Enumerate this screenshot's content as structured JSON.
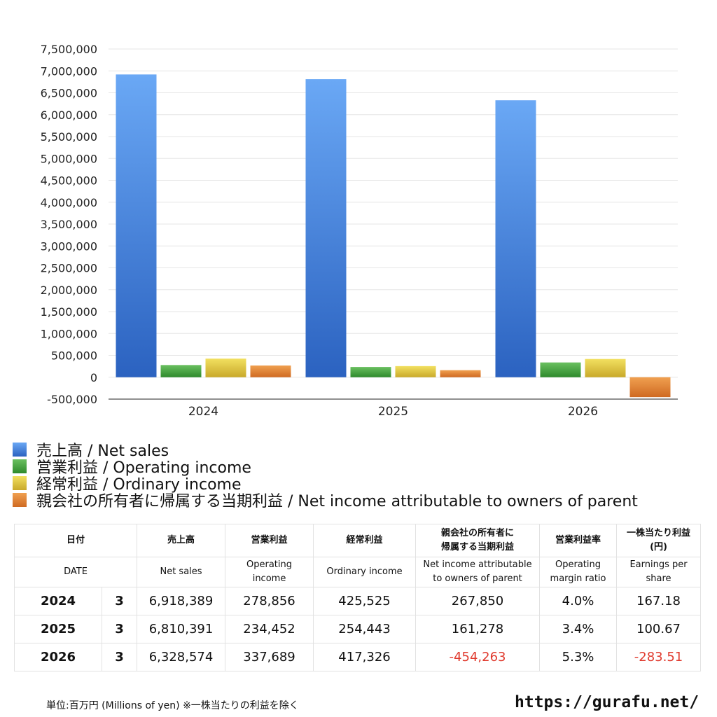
{
  "colors": {
    "net_sales": "#3f7fe0",
    "operating_income": "#3f9a3a",
    "ordinary_income": "#d9c23a",
    "net_income": "#e0782e",
    "negative_text": "#e03a2e"
  },
  "chart_data": {
    "type": "bar",
    "categories": [
      "2024",
      "2025",
      "2026"
    ],
    "ylim": [
      -500000,
      7500000
    ],
    "ytick_step": 500000,
    "y_tick_labels": [
      "-500,000",
      "0",
      "500,000",
      "1,000,000",
      "1,500,000",
      "2,000,000",
      "2,500,000",
      "3,000,000",
      "3,500,000",
      "4,000,000",
      "4,500,000",
      "5,000,000",
      "5,500,000",
      "6,000,000",
      "6,500,000",
      "7,000,000",
      "7,500,000"
    ],
    "grid": true,
    "legend_position": "bottom-left",
    "series": [
      {
        "name": "売上高 / Net sales",
        "values": [
          6918389,
          6810391,
          6328574
        ]
      },
      {
        "name": "営業利益 / Operating income",
        "values": [
          278856,
          234452,
          337689
        ]
      },
      {
        "name": "経常利益 / Ordinary income",
        "values": [
          425525,
          254443,
          417326
        ]
      },
      {
        "name": "親会社の所有者に帰属する当期利益 / Net income attributable to owners of parent",
        "values": [
          267850,
          161278,
          -454263
        ]
      }
    ]
  },
  "table": {
    "header_jp": {
      "date": "日付",
      "net_sales": "売上高",
      "operating_income": "営業利益",
      "ordinary_income": "経常利益",
      "net_income_l1": "親会社の所有者に",
      "net_income_l2": "帰属する当期利益",
      "margin": "営業利益率",
      "eps_l1": "一株当たり利益",
      "eps_l2": "(円)"
    },
    "header_en": {
      "date": "DATE",
      "net_sales": "Net sales",
      "operating_income_l1": "Operating",
      "operating_income_l2": "income",
      "ordinary_income": "Ordinary income",
      "net_income_l1": "Net income attributable",
      "net_income_l2": "to owners of parent",
      "margin_l1": "Operating",
      "margin_l2": "margin ratio",
      "eps_l1": "Earnings per",
      "eps_l2": "share"
    },
    "rows": [
      {
        "year": "2024",
        "month": "3",
        "net_sales": "6,918,389",
        "operating_income": "278,856",
        "ordinary_income": "425,525",
        "net_income": "267,850",
        "margin": "4.0%",
        "eps": "167.18"
      },
      {
        "year": "2025",
        "month": "3",
        "net_sales": "6,810,391",
        "operating_income": "234,452",
        "ordinary_income": "254,443",
        "net_income": "161,278",
        "margin": "3.4%",
        "eps": "100.67"
      },
      {
        "year": "2026",
        "month": "3",
        "net_sales": "6,328,574",
        "operating_income": "337,689",
        "ordinary_income": "417,326",
        "net_income": "-454,263",
        "margin": "5.3%",
        "eps": "-283.51"
      }
    ]
  },
  "footnote": "単位:百万円 (Millions of yen) ※一株当たりの利益を除く",
  "site": "https://gurafu.net/"
}
